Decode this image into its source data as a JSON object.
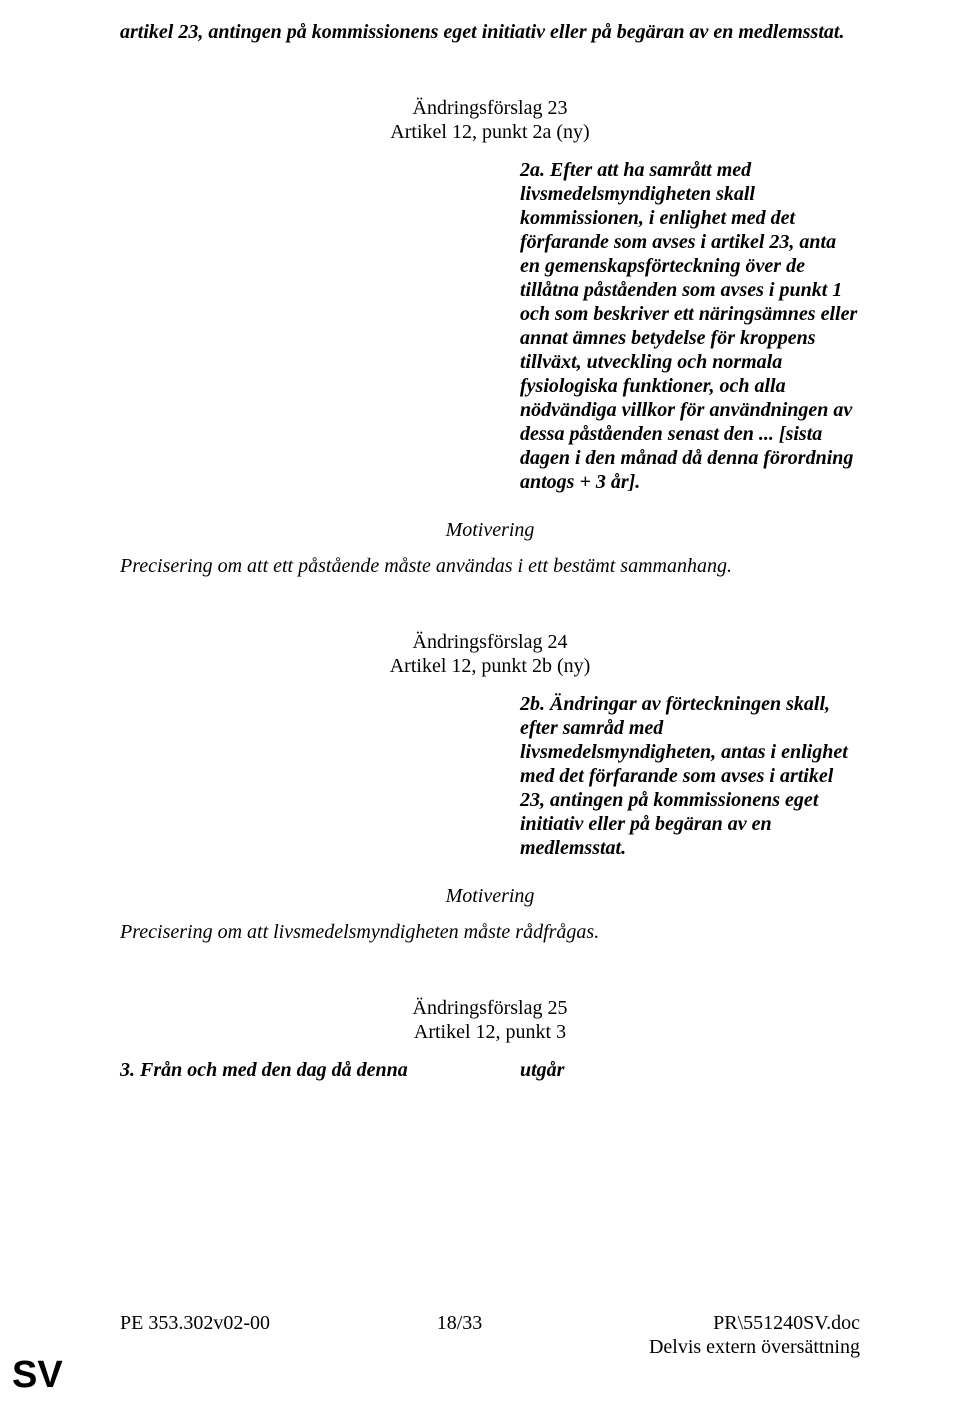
{
  "intro": {
    "text": "artikel 23, antingen på kommissionens eget initiativ eller på begäran av en medlemsstat."
  },
  "amendment23": {
    "title": "Ändringsförslag 23",
    "article": "Artikel 12, punkt 2a (ny)",
    "body": "2a. Efter att ha samrått med livsmedelsmyndigheten skall kommissionen, i enlighet med det förfarande som avses i artikel 23, anta en gemenskapsförteckning över de tillåtna påståenden som avses i punkt 1 och som beskriver ett näringsämnes eller annat ämnes betydelse för kroppens tillväxt, utveckling och normala fysiologiska funktioner, och alla nödvändiga villkor för användningen av dessa påståenden senast den ... [sista dagen i den månad då denna förordning antogs + 3 år]."
  },
  "motivation": {
    "label": "Motivering"
  },
  "motivation23": {
    "text": "Precisering om att ett påstående måste användas i ett bestämt sammanhang."
  },
  "amendment24": {
    "title": "Ändringsförslag 24",
    "article": "Artikel 12, punkt 2b (ny)",
    "body": "2b. Ändringar av förteckningen skall, efter samråd med livsmedelsmyndigheten, antas i enlighet med det förfarande som avses i artikel 23, antingen på kommissionens eget initiativ eller på begäran av en medlemsstat."
  },
  "motivation24": {
    "text": "Precisering om att livsmedelsmyndigheten måste rådfrågas."
  },
  "amendment25": {
    "title": "Ändringsförslag 25",
    "article": "Artikel 12, punkt 3",
    "left": "3. Från och med den dag då denna",
    "right": "utgår"
  },
  "footer": {
    "left": "PE 353.302v02-00",
    "center": "18/33",
    "right_line1": "PR\\551240SV.doc",
    "right_line2": "Delvis extern översättning"
  },
  "sv": "SV"
}
